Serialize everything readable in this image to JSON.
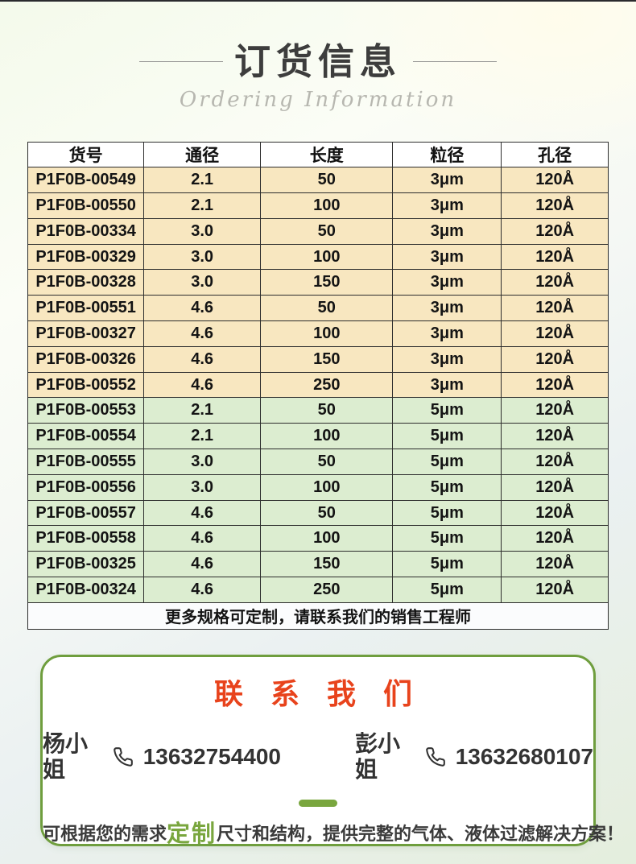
{
  "header": {
    "title": "订货信息",
    "subtitle": "Ordering Information"
  },
  "table": {
    "columns": [
      "货号",
      "通径",
      "长度",
      "粒径",
      "孔径"
    ],
    "band_colors": {
      "yellow": "#f8e7c0",
      "green": "#dcedd0"
    },
    "rows": [
      {
        "band": "yellow",
        "cells": [
          "P1F0B-00549",
          "2.1",
          "50",
          "3μm",
          "120Å"
        ]
      },
      {
        "band": "yellow",
        "cells": [
          "P1F0B-00550",
          "2.1",
          "100",
          "3μm",
          "120Å"
        ]
      },
      {
        "band": "yellow",
        "cells": [
          "P1F0B-00334",
          "3.0",
          "50",
          "3μm",
          "120Å"
        ]
      },
      {
        "band": "yellow",
        "cells": [
          "P1F0B-00329",
          "3.0",
          "100",
          "3μm",
          "120Å"
        ]
      },
      {
        "band": "yellow",
        "cells": [
          "P1F0B-00328",
          "3.0",
          "150",
          "3μm",
          "120Å"
        ]
      },
      {
        "band": "yellow",
        "cells": [
          "P1F0B-00551",
          "4.6",
          "50",
          "3μm",
          "120Å"
        ]
      },
      {
        "band": "yellow",
        "cells": [
          "P1F0B-00327",
          "4.6",
          "100",
          "3μm",
          "120Å"
        ]
      },
      {
        "band": "yellow",
        "cells": [
          "P1F0B-00326",
          "4.6",
          "150",
          "3μm",
          "120Å"
        ]
      },
      {
        "band": "yellow",
        "cells": [
          "P1F0B-00552",
          "4.6",
          "250",
          "3μm",
          "120Å"
        ]
      },
      {
        "band": "green",
        "cells": [
          "P1F0B-00553",
          "2.1",
          "50",
          "5μm",
          "120Å"
        ]
      },
      {
        "band": "green",
        "cells": [
          "P1F0B-00554",
          "2.1",
          "100",
          "5μm",
          "120Å"
        ]
      },
      {
        "band": "green",
        "cells": [
          "P1F0B-00555",
          "3.0",
          "50",
          "5μm",
          "120Å"
        ]
      },
      {
        "band": "green",
        "cells": [
          "P1F0B-00556",
          "3.0",
          "100",
          "5μm",
          "120Å"
        ]
      },
      {
        "band": "green",
        "cells": [
          "P1F0B-00557",
          "4.6",
          "50",
          "5μm",
          "120Å"
        ]
      },
      {
        "band": "green",
        "cells": [
          "P1F0B-00558",
          "4.6",
          "100",
          "5μm",
          "120Å"
        ]
      },
      {
        "band": "green",
        "cells": [
          "P1F0B-00325",
          "4.6",
          "150",
          "5μm",
          "120Å"
        ]
      },
      {
        "band": "green",
        "cells": [
          "P1F0B-00324",
          "4.6",
          "250",
          "5μm",
          "120Å"
        ]
      }
    ],
    "footer_note": "更多规格可定制，请联系我们的销售工程师"
  },
  "contact": {
    "title": "联 系 我 们",
    "contacts": [
      {
        "name": "杨小姐",
        "phone": "13632754400",
        "icon": "phone-icon"
      },
      {
        "name": "彭小姐",
        "phone": "13632680107",
        "icon": "phone-icon"
      }
    ],
    "note_prefix": "可根据您的需求",
    "note_highlight": "定制",
    "note_suffix": "尺寸和结构，提供完整的气体、液体过滤解决方案！"
  },
  "colors": {
    "accent_green": "#6f9e3e",
    "highlight_green": "#79a63e",
    "contact_red": "#e8431c",
    "band_yellow": "#f8e7c0",
    "band_green": "#dcedd0",
    "border_dark": "#2d2d2d"
  }
}
